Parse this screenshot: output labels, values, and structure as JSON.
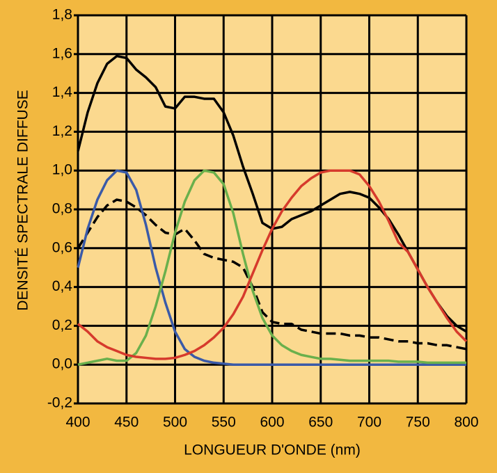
{
  "chart_data": {
    "type": "line",
    "xlabel": "LONGUEUR D'ONDE (nm)",
    "ylabel": "DENSITÉ SPECTRALE DIFFUSE",
    "x": [
      400,
      410,
      420,
      430,
      440,
      450,
      460,
      470,
      480,
      490,
      500,
      510,
      520,
      530,
      540,
      550,
      560,
      570,
      580,
      590,
      600,
      610,
      620,
      630,
      640,
      650,
      660,
      670,
      680,
      690,
      700,
      710,
      720,
      730,
      740,
      750,
      760,
      770,
      780,
      790,
      800
    ],
    "series": [
      {
        "color": "#000000",
        "dashed": false,
        "values": [
          1.1,
          1.3,
          1.45,
          1.55,
          1.59,
          1.58,
          1.52,
          1.48,
          1.43,
          1.33,
          1.32,
          1.38,
          1.38,
          1.37,
          1.37,
          1.3,
          1.18,
          1.02,
          0.88,
          0.73,
          0.7,
          0.71,
          0.75,
          0.77,
          0.79,
          0.82,
          0.85,
          0.88,
          0.89,
          0.88,
          0.86,
          0.81,
          0.75,
          0.67,
          0.58,
          0.49,
          0.4,
          0.32,
          0.25,
          0.2,
          0.17
        ]
      },
      {
        "color": "#000000",
        "dashed": true,
        "values": [
          0.6,
          0.68,
          0.76,
          0.82,
          0.85,
          0.84,
          0.81,
          0.77,
          0.72,
          0.68,
          0.67,
          0.7,
          0.64,
          0.57,
          0.55,
          0.54,
          0.53,
          0.5,
          0.4,
          0.27,
          0.22,
          0.21,
          0.21,
          0.18,
          0.17,
          0.16,
          0.16,
          0.16,
          0.15,
          0.15,
          0.14,
          0.14,
          0.13,
          0.12,
          0.12,
          0.11,
          0.11,
          0.1,
          0.1,
          0.09,
          0.08
        ]
      },
      {
        "color": "#3a5aa8",
        "dashed": false,
        "values": [
          0.5,
          0.7,
          0.85,
          0.95,
          1.0,
          0.99,
          0.9,
          0.72,
          0.5,
          0.32,
          0.17,
          0.08,
          0.04,
          0.02,
          0.01,
          0.005,
          0,
          0,
          0,
          0,
          0,
          0,
          0,
          0,
          0,
          0,
          0,
          0,
          0,
          0,
          0,
          0,
          0,
          0,
          0,
          0,
          0,
          0,
          0,
          0,
          0
        ]
      },
      {
        "color": "#6ab04c",
        "dashed": false,
        "values": [
          0,
          0.01,
          0.02,
          0.03,
          0.02,
          0.02,
          0.06,
          0.15,
          0.3,
          0.48,
          0.68,
          0.84,
          0.95,
          1.0,
          0.99,
          0.93,
          0.78,
          0.57,
          0.38,
          0.24,
          0.15,
          0.1,
          0.07,
          0.05,
          0.04,
          0.03,
          0.03,
          0.025,
          0.02,
          0.02,
          0.02,
          0.02,
          0.02,
          0.015,
          0.015,
          0.015,
          0.01,
          0.01,
          0.01,
          0.01,
          0.01
        ]
      },
      {
        "color": "#d63a2c",
        "dashed": false,
        "values": [
          0.21,
          0.17,
          0.12,
          0.09,
          0.07,
          0.05,
          0.04,
          0.035,
          0.03,
          0.03,
          0.035,
          0.05,
          0.07,
          0.1,
          0.14,
          0.19,
          0.26,
          0.35,
          0.47,
          0.59,
          0.7,
          0.79,
          0.86,
          0.92,
          0.96,
          0.99,
          1.0,
          1.0,
          1.0,
          0.98,
          0.92,
          0.84,
          0.74,
          0.63,
          0.58,
          0.49,
          0.4,
          0.32,
          0.24,
          0.17,
          0.12
        ]
      }
    ],
    "xlim": [
      400,
      800
    ],
    "xticks": [
      400,
      450,
      500,
      550,
      600,
      650,
      700,
      750,
      800
    ],
    "ylim": [
      -0.2,
      1.8
    ],
    "yticks": [
      {
        "value": -0.2,
        "label": "-0,2"
      },
      {
        "value": 0,
        "label": "0,0"
      },
      {
        "value": 0.2,
        "label": "0,2"
      },
      {
        "value": 0.4,
        "label": "0,4"
      },
      {
        "value": 0.6,
        "label": "0,6"
      },
      {
        "value": 0.8,
        "label": "0,8"
      },
      {
        "value": 1.0,
        "label": "1,0"
      },
      {
        "value": 1.2,
        "label": "1,2"
      },
      {
        "value": 1.4,
        "label": "1,4"
      },
      {
        "value": 1.6,
        "label": "1,6"
      },
      {
        "value": 1.8,
        "label": "1,8"
      }
    ],
    "grid": true
  }
}
